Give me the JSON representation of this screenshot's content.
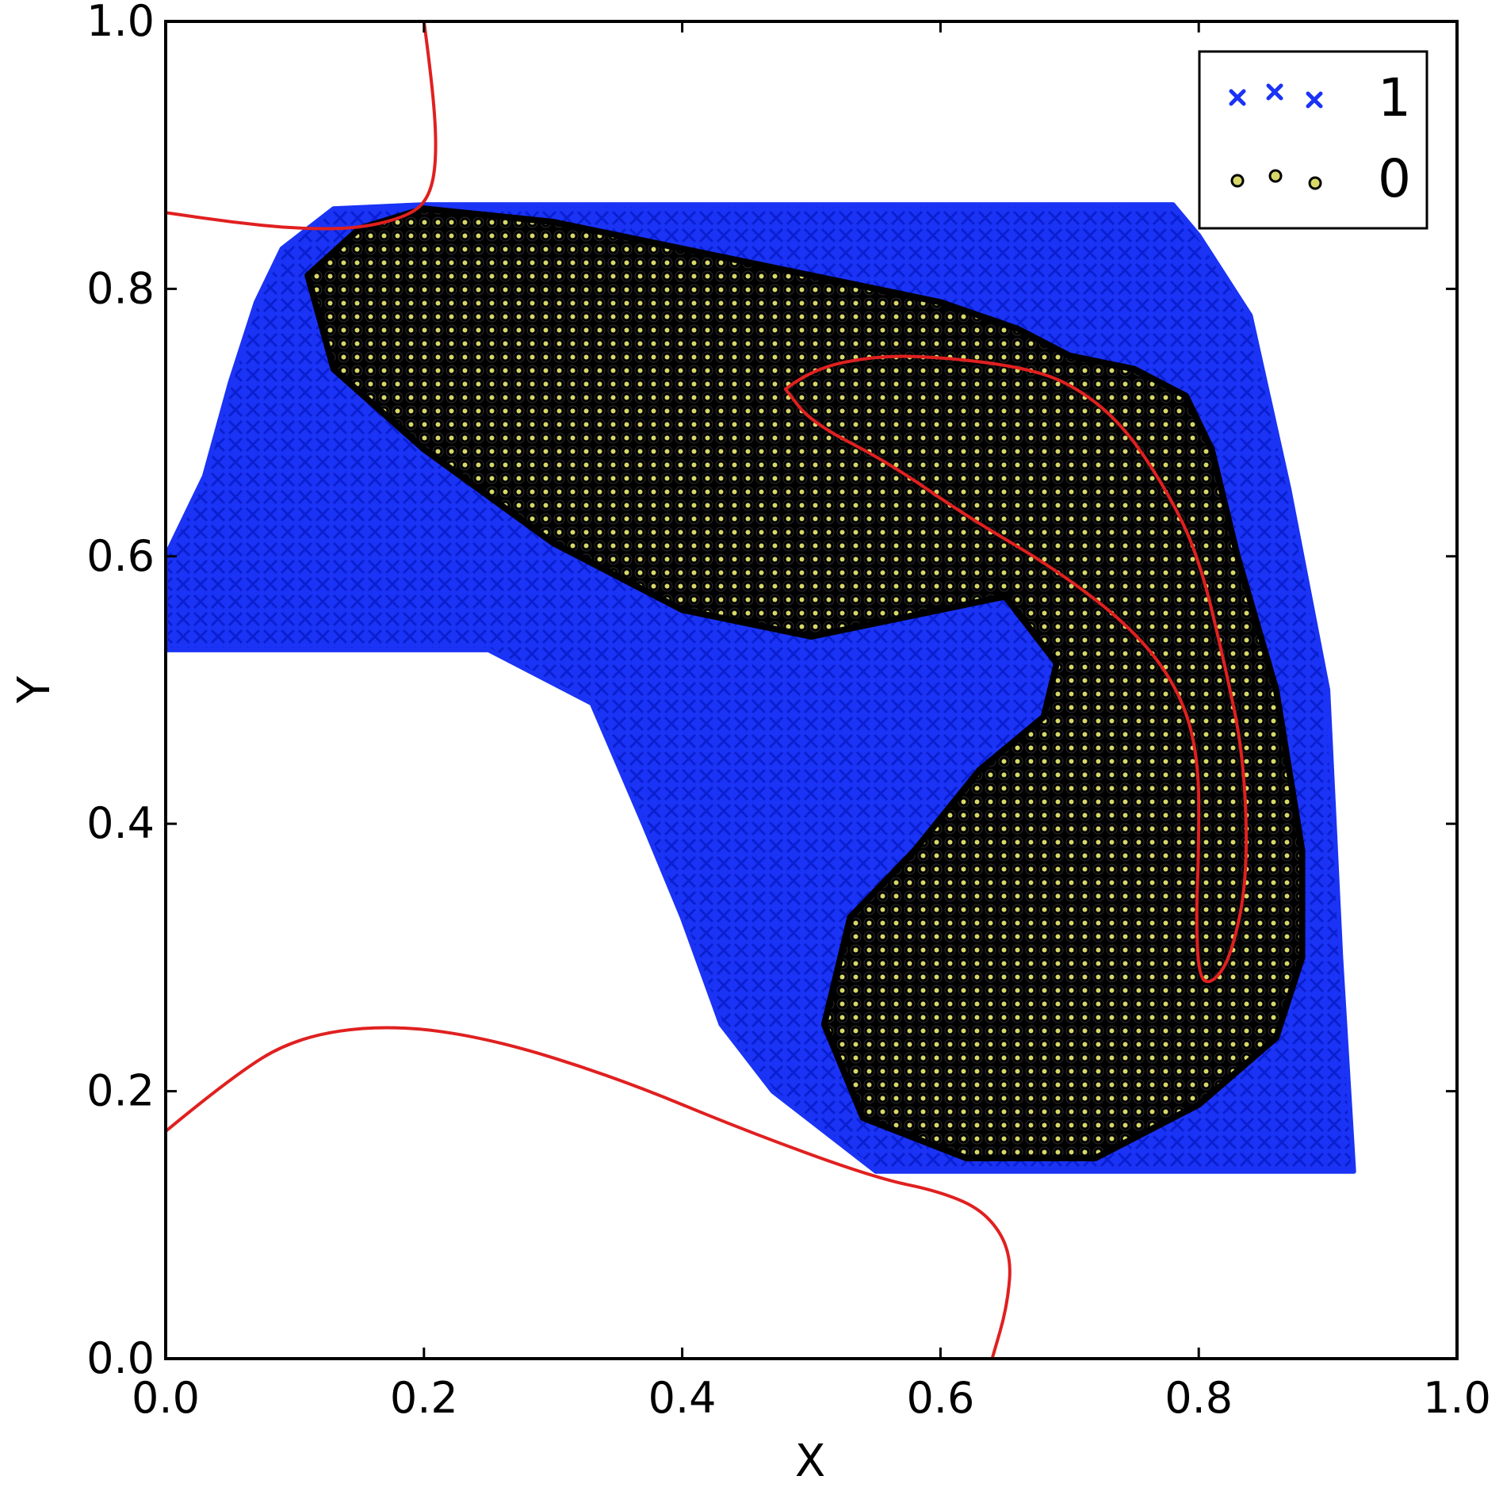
{
  "chart_data": {
    "type": "scatter",
    "title": "",
    "xlabel": "X",
    "ylabel": "Y",
    "xlim": [
      0.0,
      1.0
    ],
    "ylim": [
      0.0,
      1.0
    ],
    "x_ticks": [
      "0.0",
      "0.2",
      "0.4",
      "0.6",
      "0.8",
      "1.0"
    ],
    "y_ticks": [
      "0.0",
      "0.2",
      "0.4",
      "0.6",
      "0.8",
      "1.0"
    ],
    "grid": false,
    "legend": {
      "position": "top-right",
      "entries": [
        {
          "label": "1",
          "marker": "x"
        },
        {
          "label": "0",
          "marker": "o"
        }
      ]
    },
    "colors": {
      "class_1": "#1a33f5",
      "class_0_edge": "#000000",
      "class_0_face": "#d8d86a",
      "boundary": "#e02020"
    },
    "series": [
      {
        "name": "1",
        "marker": "x",
        "region_polygon": [
          [
            0.0,
            0.53
          ],
          [
            0.0,
            0.6
          ],
          [
            0.03,
            0.66
          ],
          [
            0.05,
            0.73
          ],
          [
            0.07,
            0.79
          ],
          [
            0.09,
            0.83
          ],
          [
            0.13,
            0.86
          ],
          [
            0.2,
            0.863
          ],
          [
            0.5,
            0.863
          ],
          [
            0.78,
            0.863
          ],
          [
            0.8,
            0.84
          ],
          [
            0.84,
            0.78
          ],
          [
            0.87,
            0.65
          ],
          [
            0.9,
            0.5
          ],
          [
            0.91,
            0.3
          ],
          [
            0.92,
            0.14
          ],
          [
            0.55,
            0.14
          ],
          [
            0.47,
            0.2
          ],
          [
            0.43,
            0.25
          ],
          [
            0.4,
            0.33
          ],
          [
            0.37,
            0.4
          ],
          [
            0.33,
            0.49
          ],
          [
            0.25,
            0.53
          ],
          [
            0.0,
            0.53
          ]
        ]
      },
      {
        "name": "0",
        "marker": "o",
        "region_outline_upper": [
          [
            0.11,
            0.81
          ],
          [
            0.15,
            0.845
          ],
          [
            0.2,
            0.86
          ],
          [
            0.3,
            0.85
          ],
          [
            0.45,
            0.82
          ],
          [
            0.6,
            0.79
          ],
          [
            0.66,
            0.77
          ],
          [
            0.7,
            0.75
          ],
          [
            0.75,
            0.74
          ],
          [
            0.79,
            0.72
          ],
          [
            0.81,
            0.68
          ],
          [
            0.83,
            0.6
          ],
          [
            0.86,
            0.5
          ],
          [
            0.88,
            0.38
          ],
          [
            0.88,
            0.3
          ],
          [
            0.86,
            0.24
          ],
          [
            0.8,
            0.19
          ],
          [
            0.72,
            0.15
          ],
          [
            0.62,
            0.15
          ],
          [
            0.54,
            0.18
          ],
          [
            0.51,
            0.25
          ],
          [
            0.53,
            0.33
          ],
          [
            0.58,
            0.38
          ],
          [
            0.63,
            0.44
          ],
          [
            0.68,
            0.48
          ],
          [
            0.69,
            0.52
          ],
          [
            0.65,
            0.57
          ],
          [
            0.6,
            0.56
          ],
          [
            0.5,
            0.54
          ],
          [
            0.4,
            0.56
          ],
          [
            0.3,
            0.61
          ],
          [
            0.2,
            0.68
          ],
          [
            0.13,
            0.74
          ],
          [
            0.11,
            0.81
          ]
        ]
      }
    ],
    "decision_boundaries": [
      [
        [
          0.2,
          1.0
        ],
        [
          0.207,
          0.95
        ],
        [
          0.21,
          0.9
        ],
        [
          0.205,
          0.87
        ],
        [
          0.19,
          0.855
        ],
        [
          0.15,
          0.845
        ],
        [
          0.1,
          0.845
        ],
        [
          0.05,
          0.85
        ],
        [
          0.0,
          0.857
        ]
      ],
      [
        [
          0.0,
          0.17
        ],
        [
          0.05,
          0.21
        ],
        [
          0.1,
          0.24
        ],
        [
          0.17,
          0.25
        ],
        [
          0.25,
          0.24
        ],
        [
          0.35,
          0.21
        ],
        [
          0.45,
          0.17
        ],
        [
          0.55,
          0.135
        ],
        [
          0.6,
          0.125
        ],
        [
          0.635,
          0.11
        ],
        [
          0.655,
          0.08
        ],
        [
          0.652,
          0.04
        ],
        [
          0.64,
          0.0
        ]
      ],
      [
        [
          0.48,
          0.725
        ],
        [
          0.5,
          0.74
        ],
        [
          0.55,
          0.75
        ],
        [
          0.6,
          0.749
        ],
        [
          0.66,
          0.742
        ],
        [
          0.7,
          0.73
        ],
        [
          0.74,
          0.7
        ],
        [
          0.775,
          0.65
        ],
        [
          0.8,
          0.6
        ],
        [
          0.82,
          0.52
        ],
        [
          0.835,
          0.45
        ],
        [
          0.838,
          0.36
        ],
        [
          0.825,
          0.3
        ],
        [
          0.81,
          0.28
        ],
        [
          0.8,
          0.285
        ],
        [
          0.798,
          0.33
        ],
        [
          0.8,
          0.38
        ],
        [
          0.8,
          0.45
        ],
        [
          0.785,
          0.5
        ],
        [
          0.75,
          0.545
        ],
        [
          0.69,
          0.59
        ],
        [
          0.62,
          0.63
        ],
        [
          0.56,
          0.67
        ],
        [
          0.5,
          0.7
        ],
        [
          0.48,
          0.725
        ]
      ]
    ]
  }
}
